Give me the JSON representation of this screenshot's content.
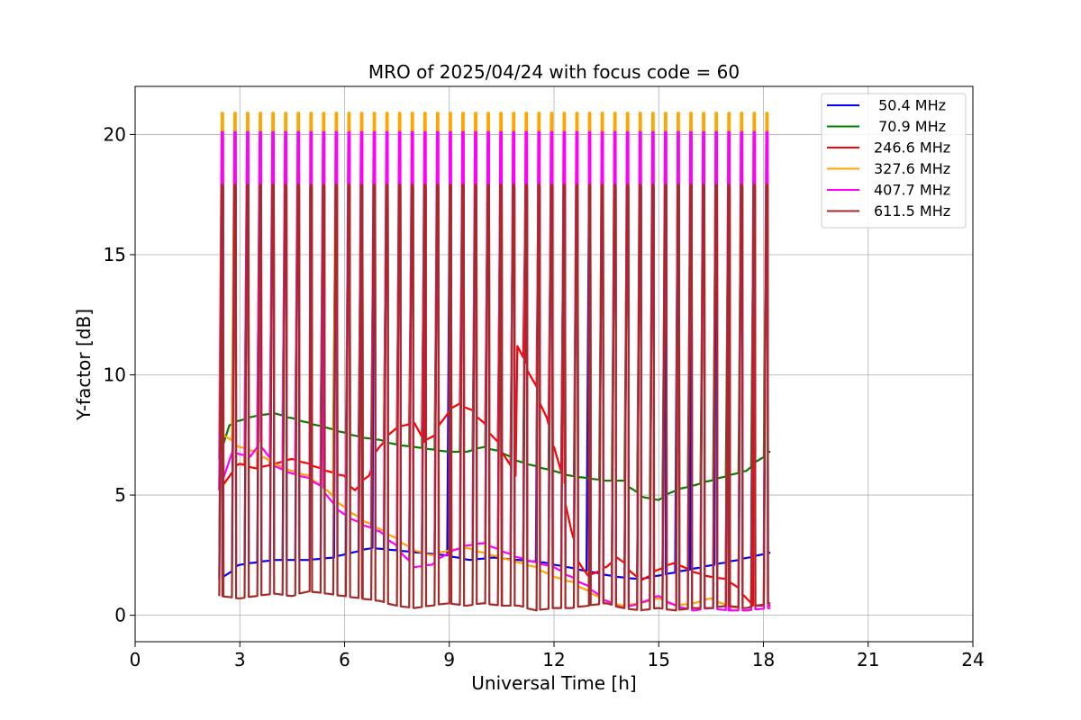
{
  "chart_data": {
    "type": "line",
    "title": "MRO of 2025/04/24 with focus code = 60",
    "xlabel": "Universal Time [h]",
    "ylabel": "Y-factor [dB]",
    "xlim": [
      0,
      24
    ],
    "ylim": [
      -1.1,
      22
    ],
    "xticks": [
      0,
      3,
      6,
      9,
      12,
      15,
      18,
      21,
      24
    ],
    "yticks": [
      0,
      5,
      10,
      15,
      20
    ],
    "grid": true,
    "legend_position": "top-right",
    "calibration_spikes": {
      "start_time": 2.5,
      "end_time": 18.1,
      "count": 44,
      "peak_values": {
        "50.4 MHz": 17.8,
        "70.9 MHz": 17.8,
        "246.6 MHz": 17.8,
        "327.6 MHz": 20.9,
        "407.7 MHz": 20.1,
        "611.5 MHz": 17.9
      }
    },
    "series": [
      {
        "name": " 50.4 MHz",
        "color": "#0000ff",
        "x": [
          2.5,
          3.0,
          4.0,
          5.0,
          5.7,
          6.2,
          6.8,
          7.5,
          8.2,
          8.9,
          9.6,
          10.3,
          11.0,
          11.7,
          12.4,
          13.1,
          13.8,
          14.5,
          15.2,
          15.9,
          16.6,
          17.3,
          18.2
        ],
        "y": [
          1.5,
          2.1,
          2.3,
          2.3,
          2.4,
          2.6,
          2.8,
          2.7,
          2.6,
          2.5,
          2.3,
          2.4,
          2.3,
          2.2,
          2.0,
          1.8,
          1.6,
          1.5,
          1.7,
          1.9,
          2.1,
          2.3,
          2.6
        ]
      },
      {
        "name": " 70.9 MHz",
        "color": "#008000",
        "x": [
          2.5,
          2.7,
          3.0,
          3.5,
          4.0,
          4.5,
          5.0,
          5.5,
          6.0,
          6.5,
          7.0,
          7.5,
          8.0,
          8.5,
          9.0,
          9.5,
          10.0,
          10.5,
          11.0,
          11.5,
          12.0,
          12.5,
          13.0,
          13.5,
          14.0,
          14.3,
          14.6,
          15.0,
          15.5,
          16.0,
          16.5,
          17.0,
          17.5,
          18.2
        ],
        "y": [
          6.5,
          7.9,
          8.1,
          8.3,
          8.4,
          8.2,
          8.0,
          7.8,
          7.6,
          7.4,
          7.3,
          7.1,
          7.0,
          6.9,
          6.8,
          6.8,
          7.0,
          6.8,
          6.4,
          6.2,
          6.0,
          5.8,
          5.7,
          5.6,
          5.6,
          5.2,
          4.9,
          4.8,
          5.2,
          5.4,
          5.6,
          5.8,
          6.0,
          6.8
        ]
      },
      {
        "name": "246.6 MHz",
        "color": "#ff0000",
        "x": [
          2.5,
          2.8,
          3.0,
          3.5,
          4.0,
          4.5,
          5.0,
          5.5,
          6.0,
          6.3,
          6.7,
          7.0,
          7.5,
          8.0,
          8.3,
          8.6,
          9.0,
          9.3,
          9.7,
          10.0,
          10.5,
          10.9,
          10.95,
          11.2,
          11.5,
          11.8,
          12.0,
          12.3,
          12.5,
          12.8,
          13.0,
          13.5,
          13.8,
          14.0,
          14.5,
          15.0,
          15.5,
          16.0,
          16.5,
          17.0,
          17.4,
          17.7,
          18.2
        ],
        "y": [
          5.2,
          6.0,
          6.3,
          6.1,
          6.3,
          6.5,
          6.3,
          6.0,
          5.8,
          5.2,
          5.8,
          7.0,
          7.8,
          8.0,
          7.2,
          7.5,
          8.5,
          8.8,
          8.5,
          8.0,
          7.0,
          5.8,
          11.2,
          10.5,
          9.5,
          8.2,
          7.0,
          5.5,
          3.5,
          2.0,
          1.6,
          2.0,
          2.4,
          2.2,
          1.4,
          1.9,
          2.2,
          1.8,
          1.6,
          1.5,
          1.0,
          0.4,
          0.4
        ]
      },
      {
        "name": "327.6 MHz",
        "color": "#ffa500",
        "x": [
          2.5,
          3.0,
          3.5,
          4.0,
          4.5,
          5.0,
          5.5,
          6.0,
          6.5,
          7.0,
          7.5,
          8.0,
          8.5,
          9.0,
          9.5,
          10.0,
          10.5,
          11.0,
          11.5,
          12.0,
          12.5,
          13.0,
          13.5,
          14.0,
          14.5,
          15.0,
          15.5,
          16.0,
          16.5,
          17.0,
          17.5,
          18.2
        ],
        "y": [
          7.6,
          7.0,
          6.8,
          6.3,
          6.0,
          5.8,
          5.2,
          4.5,
          4.0,
          3.6,
          3.2,
          2.7,
          2.5,
          2.7,
          2.8,
          2.6,
          2.4,
          2.2,
          2.0,
          1.6,
          1.4,
          1.0,
          0.6,
          0.4,
          0.5,
          0.7,
          0.4,
          0.5,
          0.7,
          0.4,
          0.2,
          0.3
        ]
      },
      {
        "name": "407.7 MHz",
        "color": "#ff00ff",
        "x": [
          2.5,
          2.8,
          3.0,
          3.3,
          3.6,
          4.0,
          4.5,
          5.0,
          5.4,
          5.7,
          6.0,
          6.5,
          7.0,
          7.5,
          8.0,
          8.5,
          9.0,
          9.5,
          10.0,
          10.5,
          11.0,
          11.5,
          12.0,
          12.5,
          13.0,
          13.5,
          14.0,
          14.5,
          15.0,
          15.5,
          16.0,
          16.5,
          17.0,
          17.5,
          18.2
        ],
        "y": [
          5.2,
          6.9,
          6.7,
          6.6,
          7.2,
          6.2,
          5.9,
          5.7,
          5.3,
          4.6,
          4.2,
          3.8,
          3.5,
          2.9,
          2.0,
          2.1,
          2.6,
          2.9,
          3.0,
          2.7,
          2.4,
          2.2,
          2.0,
          1.6,
          1.2,
          0.6,
          0.3,
          0.5,
          0.8,
          0.4,
          0.2,
          0.3,
          0.2,
          0.2,
          0.3
        ]
      },
      {
        "name": "611.5 MHz",
        "color": "#a52a2a",
        "x": [
          2.5,
          3.0,
          3.5,
          4.0,
          4.5,
          5.0,
          5.5,
          6.0,
          6.5,
          7.0,
          7.5,
          8.0,
          8.5,
          9.0,
          9.5,
          10.0,
          10.5,
          11.0,
          11.5,
          12.0,
          12.5,
          13.0,
          13.5,
          14.0,
          14.5,
          15.0,
          15.5,
          16.0,
          16.5,
          17.0,
          17.5,
          18.2
        ],
        "y": [
          0.8,
          0.7,
          0.8,
          0.9,
          0.8,
          1.0,
          0.9,
          0.8,
          0.7,
          0.6,
          0.4,
          0.3,
          0.4,
          0.5,
          0.4,
          0.5,
          0.4,
          0.4,
          0.2,
          0.3,
          0.3,
          0.4,
          0.5,
          0.3,
          0.2,
          0.3,
          0.2,
          0.3,
          0.3,
          0.4,
          0.3,
          0.5
        ]
      }
    ]
  }
}
